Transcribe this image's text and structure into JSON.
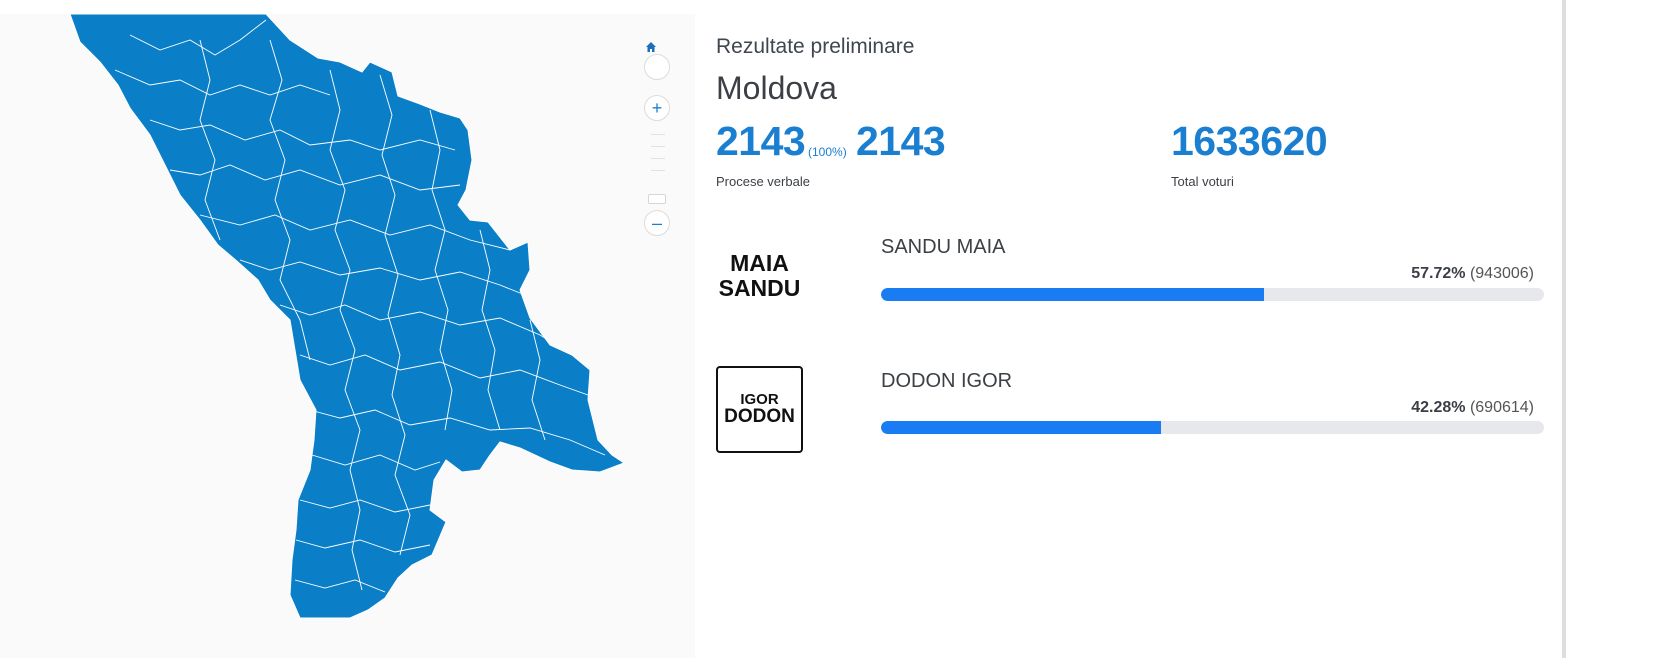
{
  "header": {
    "subtitle": "Rezultate preliminare",
    "title": "Moldova"
  },
  "stats": {
    "processed": "2143",
    "processed_pct": "(100%)",
    "total_pv": "2143",
    "processed_label": "Procese verbale",
    "total_votes": "1633620",
    "total_votes_label": "Total voturi"
  },
  "map": {
    "fill_color": "#0a7fc8",
    "border_color": "#ffffff",
    "controls": {
      "home_icon": "home-icon",
      "zoom_in_label": "+",
      "zoom_out_label": "–"
    }
  },
  "candidates": [
    {
      "name": "SANDU MAIA",
      "percent": "57.72%",
      "votes": "(943006)",
      "fraction": 0.5772,
      "logo_lines": [
        "MAIA",
        "SANDU"
      ]
    },
    {
      "name": "DODON IGOR",
      "percent": "42.28%",
      "votes": "(690614)",
      "fraction": 0.4228,
      "logo_lines": [
        "IGOR",
        "DODON"
      ]
    }
  ],
  "colors": {
    "accent": "#1a7fd0",
    "bar_fill": "#1a7cf2",
    "bar_track": "#e6e8eb"
  }
}
